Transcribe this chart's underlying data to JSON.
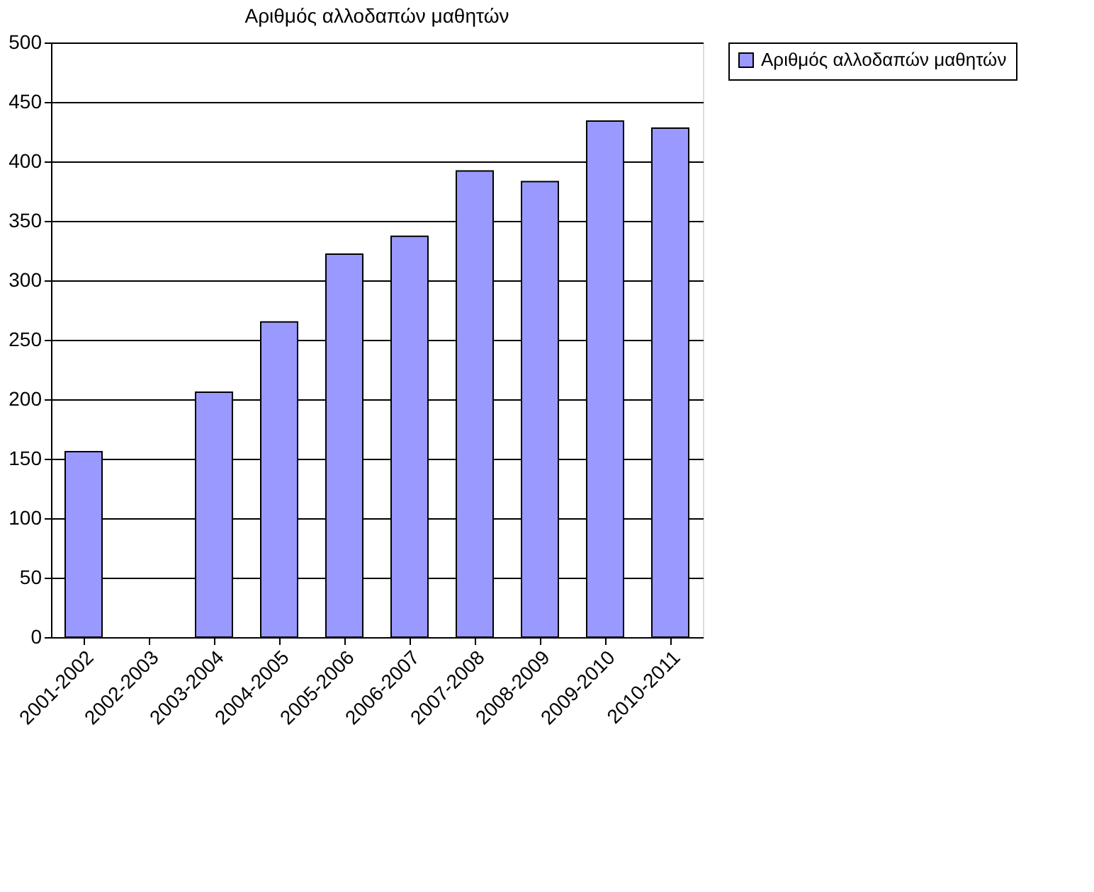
{
  "chart_data": {
    "type": "bar",
    "title": "Αριθμός αλλοδαπών μαθητών",
    "categories": [
      "2001-2002",
      "2002-2003",
      "2003-2004",
      "2004-2005",
      "2005-2006",
      "2006-2007",
      "2007-2008",
      "2008-2009",
      "2009-2010",
      "2010-2011"
    ],
    "series": [
      {
        "name": "Αριθμός αλλοδαπών μαθητών",
        "color": "#9999ff",
        "values": [
          156,
          null,
          206,
          265,
          322,
          337,
          392,
          383,
          434,
          428
        ]
      }
    ],
    "ylim": [
      0,
      500
    ],
    "yticks": [
      0,
      50,
      100,
      150,
      200,
      250,
      300,
      350,
      400,
      450,
      500
    ],
    "grid": "y",
    "legend": "right"
  }
}
